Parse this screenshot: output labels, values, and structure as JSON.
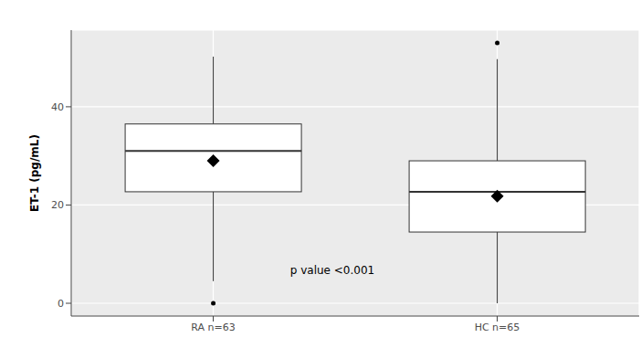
{
  "chart_data": {
    "type": "box",
    "y_label": "ET-1 (pg/mL)",
    "categories": [
      "RA n=63",
      "HC n=65"
    ],
    "boxes": [
      {
        "min": 4.5,
        "q1": 22.7,
        "median": 31,
        "q3": 36.5,
        "max": 50.2,
        "mean": 29,
        "outliers": [
          0
        ]
      },
      {
        "min": 0,
        "q1": 14.5,
        "median": 22.7,
        "q3": 29,
        "max": 49.7,
        "mean": 21.8,
        "outliers": [
          53
        ]
      }
    ],
    "annotations": [
      "p value <0.001"
    ],
    "ylim": [
      -2.6,
      55.6
    ],
    "yticks": [
      0,
      20,
      40
    ],
    "grid": true,
    "color": "#ffffff"
  }
}
